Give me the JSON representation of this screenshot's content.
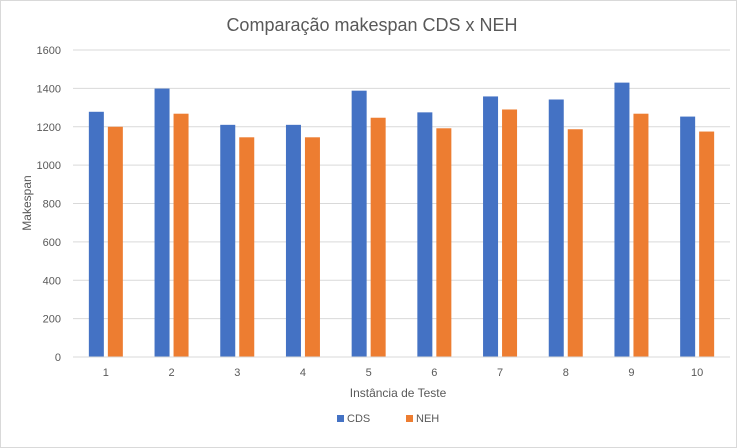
{
  "chart_data": {
    "type": "bar",
    "title": "Comparação makespan CDS x NEH",
    "xlabel": "Instância de Teste",
    "ylabel": "Makespan",
    "categories": [
      "1",
      "2",
      "3",
      "4",
      "5",
      "6",
      "7",
      "8",
      "9",
      "10"
    ],
    "series": [
      {
        "name": "CDS",
        "color": "#4472c4",
        "values": [
          1278,
          1399,
          1210,
          1210,
          1388,
          1275,
          1358,
          1342,
          1430,
          1253
        ]
      },
      {
        "name": "NEH",
        "color": "#ed7d31",
        "values": [
          1200,
          1268,
          1145,
          1145,
          1247,
          1192,
          1290,
          1187,
          1268,
          1175
        ]
      }
    ],
    "ylim": [
      0,
      1600
    ],
    "yticks": [
      0,
      200,
      400,
      600,
      800,
      1000,
      1200,
      1400,
      1600
    ],
    "grid": true,
    "legend_position": "bottom"
  }
}
